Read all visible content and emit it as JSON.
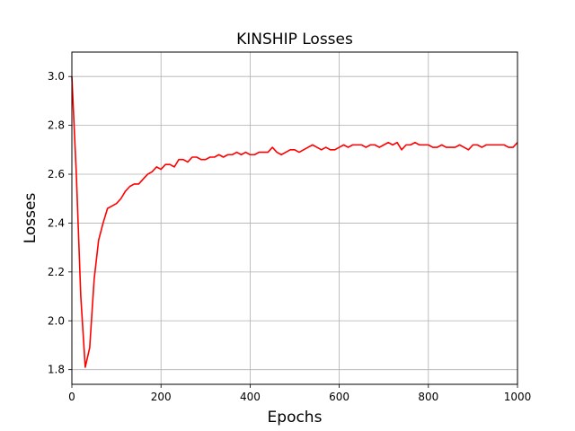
{
  "chart_data": {
    "type": "line",
    "title": "KINSHIP Losses",
    "xlabel": "Epochs",
    "ylabel": "Losses",
    "xlim": [
      0,
      1000
    ],
    "ylim": [
      1.74,
      3.1
    ],
    "xticks": [
      0,
      200,
      400,
      600,
      800,
      1000
    ],
    "yticks": [
      1.8,
      2.0,
      2.2,
      2.4,
      2.6,
      2.8,
      3.0
    ],
    "xtick_labels": [
      "0",
      "200",
      "400",
      "600",
      "800",
      "1000"
    ],
    "ytick_labels": [
      "1.8",
      "2.0",
      "2.2",
      "2.4",
      "2.6",
      "2.8",
      "3.0"
    ],
    "grid": true,
    "series": [
      {
        "color": "#ff0000",
        "x": [
          0,
          10,
          20,
          30,
          40,
          50,
          60,
          70,
          80,
          90,
          100,
          110,
          120,
          130,
          140,
          150,
          160,
          170,
          180,
          190,
          200,
          210,
          220,
          230,
          240,
          250,
          260,
          270,
          280,
          290,
          300,
          310,
          320,
          330,
          340,
          350,
          360,
          370,
          380,
          390,
          400,
          410,
          420,
          430,
          440,
          450,
          460,
          470,
          480,
          490,
          500,
          510,
          520,
          530,
          540,
          550,
          560,
          570,
          580,
          590,
          600,
          610,
          620,
          630,
          640,
          650,
          660,
          670,
          680,
          690,
          700,
          710,
          720,
          730,
          740,
          750,
          760,
          770,
          780,
          790,
          800,
          810,
          820,
          830,
          840,
          850,
          860,
          870,
          880,
          890,
          900,
          910,
          920,
          930,
          940,
          950,
          960,
          970,
          980,
          990,
          1000
        ],
        "y": [
          3.0,
          2.6,
          2.1,
          1.81,
          1.89,
          2.17,
          2.33,
          2.4,
          2.46,
          2.47,
          2.48,
          2.5,
          2.53,
          2.55,
          2.56,
          2.56,
          2.58,
          2.6,
          2.61,
          2.63,
          2.62,
          2.64,
          2.64,
          2.63,
          2.66,
          2.66,
          2.65,
          2.67,
          2.67,
          2.66,
          2.66,
          2.67,
          2.67,
          2.68,
          2.67,
          2.68,
          2.68,
          2.69,
          2.68,
          2.69,
          2.68,
          2.68,
          2.69,
          2.69,
          2.69,
          2.71,
          2.69,
          2.68,
          2.69,
          2.7,
          2.7,
          2.69,
          2.7,
          2.71,
          2.72,
          2.71,
          2.7,
          2.71,
          2.7,
          2.7,
          2.71,
          2.72,
          2.71,
          2.72,
          2.72,
          2.72,
          2.71,
          2.72,
          2.72,
          2.71,
          2.72,
          2.73,
          2.72,
          2.73,
          2.7,
          2.72,
          2.72,
          2.73,
          2.72,
          2.72,
          2.72,
          2.71,
          2.71,
          2.72,
          2.71,
          2.71,
          2.71,
          2.72,
          2.71,
          2.7,
          2.72,
          2.72,
          2.71,
          2.72,
          2.72,
          2.72,
          2.72,
          2.72,
          2.71,
          2.71,
          2.73
        ]
      }
    ]
  }
}
